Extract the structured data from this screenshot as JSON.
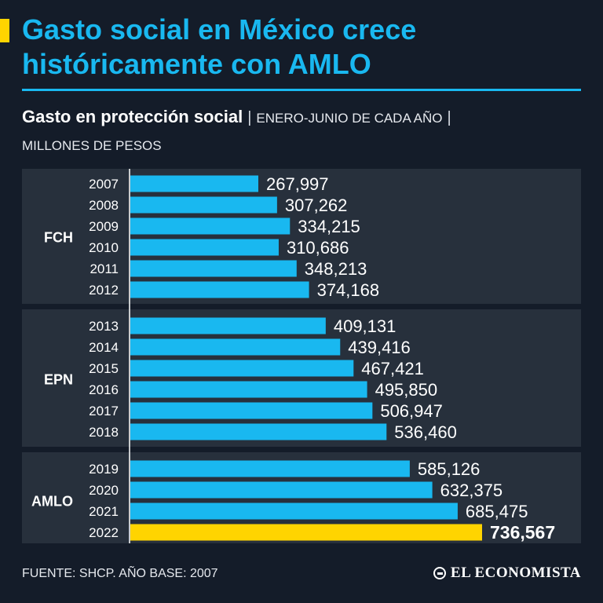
{
  "header": {
    "title": "Gasto social en México crece históricamente con AMLO",
    "subtitle_strong": "Gasto en protección social",
    "subtitle_sep1": "|",
    "subtitle_period": "ENERO-JUNIO DE CADA AÑO",
    "subtitle_sep2": "|",
    "subtitle_units": "MILLONES DE PESOS"
  },
  "footer": {
    "source": "FUENTE: SHCP. AÑO BASE: 2007",
    "brand": "EL ECONOMISTA"
  },
  "colors": {
    "background": "#141c29",
    "panel": "#27303c",
    "bar": "#19b8f0",
    "highlight": "#ffd400",
    "text": "#ffffff"
  },
  "chart_data": {
    "type": "bar",
    "orientation": "horizontal",
    "title": "Gasto en protección social",
    "units": "MILLONES DE PESOS",
    "xlim": [
      0,
      770000
    ],
    "groups": [
      {
        "label": "FCH",
        "categories": [
          "2007",
          "2008",
          "2009",
          "2010",
          "2011",
          "2012"
        ],
        "values": [
          267997,
          307262,
          334215,
          310686,
          348213,
          374168
        ],
        "value_labels": [
          "267,997",
          "307,262",
          "334,215",
          "310,686",
          "348,213",
          "374,168"
        ]
      },
      {
        "label": "EPN",
        "categories": [
          "2013",
          "2014",
          "2015",
          "2016",
          "2017",
          "2018"
        ],
        "values": [
          409131,
          439416,
          467421,
          495850,
          506947,
          536460
        ],
        "value_labels": [
          "409,131",
          "439,416",
          "467,421",
          "495,850",
          "506,947",
          "536,460"
        ]
      },
      {
        "label": "AMLO",
        "categories": [
          "2019",
          "2020",
          "2021",
          "2022"
        ],
        "values": [
          585126,
          632375,
          685475,
          736567
        ],
        "value_labels": [
          "585,126",
          "632,375",
          "685,475",
          "736,567"
        ],
        "highlight_index": 3
      }
    ]
  }
}
